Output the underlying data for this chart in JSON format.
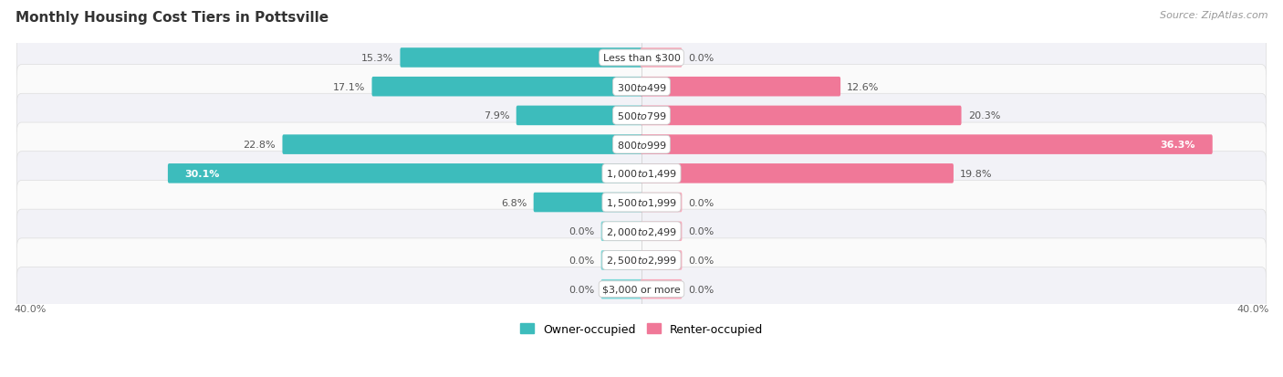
{
  "title": "Monthly Housing Cost Tiers in Pottsville",
  "source": "Source: ZipAtlas.com",
  "categories": [
    "Less than $300",
    "$300 to $499",
    "$500 to $799",
    "$800 to $999",
    "$1,000 to $1,499",
    "$1,500 to $1,999",
    "$2,000 to $2,499",
    "$2,500 to $2,999",
    "$3,000 or more"
  ],
  "owner_values": [
    15.3,
    17.1,
    7.9,
    22.8,
    30.1,
    6.8,
    0.0,
    0.0,
    0.0
  ],
  "renter_values": [
    0.0,
    12.6,
    20.3,
    36.3,
    19.8,
    0.0,
    0.0,
    0.0,
    0.0
  ],
  "owner_color": "#3DBCBC",
  "renter_color": "#F07898",
  "owner_color_pale": "#7DD8D8",
  "renter_color_pale": "#F8AABB",
  "row_bg_light": "#F2F2F7",
  "row_bg_white": "#FAFAFA",
  "axis_max": 40.0,
  "min_stub": 2.5,
  "title_fontsize": 11,
  "source_fontsize": 8,
  "value_fontsize": 8,
  "cat_fontsize": 8,
  "legend_fontsize": 9,
  "figsize": [
    14.06,
    4.14
  ],
  "dpi": 100
}
